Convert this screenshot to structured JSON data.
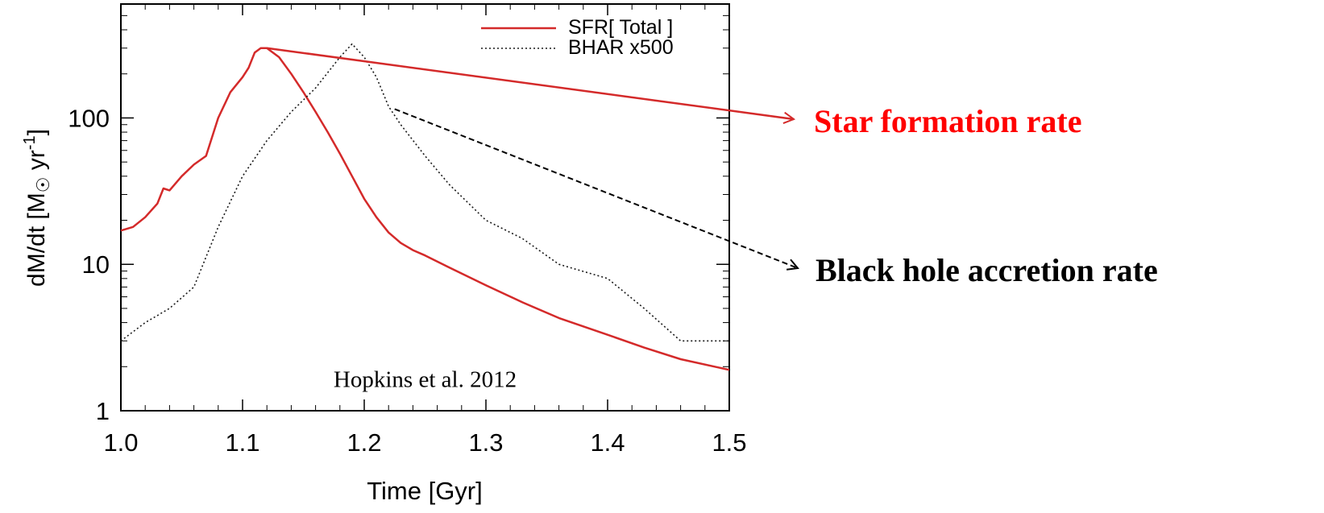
{
  "chart_data": {
    "type": "line",
    "title": "",
    "xlabel": "Time [Gyr]",
    "ylabel_main": "dM/dt [M",
    "ylabel_unit": "yr",
    "ylabel_exp": "-1",
    "ylabel_close": "]",
    "xlim": [
      1.0,
      1.5
    ],
    "ylim": [
      1,
      600
    ],
    "yscale": "log",
    "grid": false,
    "legend_position": "top-right",
    "x_ticks": [
      {
        "value": 1.0,
        "label": "1.0"
      },
      {
        "value": 1.1,
        "label": "1.1"
      },
      {
        "value": 1.2,
        "label": "1.2"
      },
      {
        "value": 1.3,
        "label": "1.3"
      },
      {
        "value": 1.4,
        "label": "1.4"
      },
      {
        "value": 1.5,
        "label": "1.5"
      }
    ],
    "y_ticks": [
      {
        "value": 1,
        "label": "1"
      },
      {
        "value": 10,
        "label": "10"
      },
      {
        "value": 100,
        "label": "100"
      }
    ],
    "series": [
      {
        "name": "SFR[ Total ]",
        "style": "solid",
        "color": "#d42a2a",
        "x": [
          1.0,
          1.01,
          1.02,
          1.03,
          1.035,
          1.04,
          1.05,
          1.06,
          1.07,
          1.08,
          1.09,
          1.1,
          1.105,
          1.11,
          1.115,
          1.12,
          1.13,
          1.14,
          1.15,
          1.16,
          1.17,
          1.18,
          1.19,
          1.2,
          1.21,
          1.22,
          1.23,
          1.24,
          1.25,
          1.27,
          1.3,
          1.33,
          1.36,
          1.4,
          1.43,
          1.46,
          1.5
        ],
        "y": [
          17,
          18,
          21,
          26,
          33,
          32,
          40,
          48,
          55,
          100,
          150,
          190,
          220,
          280,
          300,
          300,
          260,
          200,
          150,
          110,
          80,
          57,
          40,
          28,
          21,
          16.5,
          14,
          12.5,
          11.5,
          9.5,
          7.2,
          5.5,
          4.3,
          3.3,
          2.7,
          2.25,
          1.9
        ]
      },
      {
        "name": "BHAR x500",
        "style": "dotted",
        "color": "#1a1a1a",
        "x": [
          1.0,
          1.02,
          1.04,
          1.06,
          1.08,
          1.1,
          1.12,
          1.14,
          1.16,
          1.18,
          1.19,
          1.2,
          1.21,
          1.22,
          1.23,
          1.25,
          1.27,
          1.3,
          1.33,
          1.36,
          1.4,
          1.43,
          1.46,
          1.5
        ],
        "y": [
          3,
          4,
          5,
          7,
          18,
          40,
          70,
          110,
          160,
          260,
          320,
          260,
          190,
          120,
          90,
          55,
          35,
          20,
          15,
          10,
          8,
          5,
          3,
          3
        ]
      }
    ],
    "annotations": [
      {
        "text": "Hopkins et al. 2012",
        "x": 1.25,
        "y": 1.65
      },
      {
        "text": "Star formation rate",
        "color": "#ff0000"
      },
      {
        "text": "Black hole accretion rate",
        "color": "#000000"
      }
    ],
    "arrows": [
      {
        "series": "SFR[ Total ]",
        "from": {
          "x": 1.12,
          "y": 300
        },
        "label_index": 1
      },
      {
        "series": "BHAR x500",
        "from": {
          "x": 1.225,
          "y": 115
        },
        "label_index": 2
      }
    ]
  }
}
